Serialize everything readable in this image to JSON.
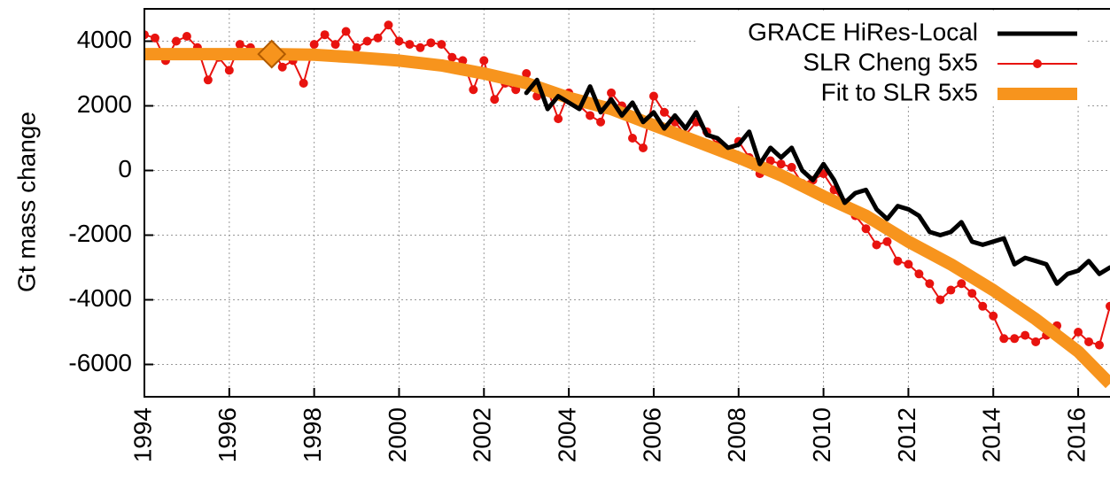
{
  "chart_data": {
    "type": "line",
    "y_label": "Gt mass change",
    "xlim": [
      1994,
      2016.75
    ],
    "ylim": [
      -7000,
      5000
    ],
    "xticks": [
      1994,
      1996,
      1998,
      2000,
      2002,
      2004,
      2006,
      2008,
      2010,
      2012,
      2014,
      2016
    ],
    "yticks": [
      -6000,
      -4000,
      -2000,
      0,
      2000,
      4000
    ],
    "grid": true,
    "legend": "top-right",
    "series": [
      {
        "name": "GRACE HiRes-Local",
        "color": "#000000",
        "style": "line",
        "x": [
          2003.0,
          2003.25,
          2003.5,
          2003.75,
          2004.0,
          2004.25,
          2004.5,
          2004.75,
          2005.0,
          2005.25,
          2005.5,
          2005.75,
          2006.0,
          2006.25,
          2006.5,
          2006.75,
          2007.0,
          2007.25,
          2007.5,
          2007.75,
          2008.0,
          2008.25,
          2008.5,
          2008.75,
          2009.0,
          2009.25,
          2009.5,
          2009.75,
          2010.0,
          2010.25,
          2010.5,
          2010.75,
          2011.0,
          2011.25,
          2011.5,
          2011.75,
          2012.0,
          2012.25,
          2012.5,
          2012.75,
          2013.0,
          2013.25,
          2013.5,
          2013.75,
          2014.0,
          2014.25,
          2014.5,
          2014.75,
          2015.0,
          2015.25,
          2015.5,
          2015.75,
          2016.0,
          2016.25,
          2016.5,
          2016.75
        ],
        "values": [
          2400,
          2800,
          1900,
          2300,
          2100,
          1900,
          2600,
          1800,
          2200,
          1700,
          2100,
          1500,
          1800,
          1300,
          1700,
          1300,
          1800,
          1100,
          1000,
          700,
          800,
          1200,
          200,
          700,
          400,
          700,
          0,
          -300,
          200,
          -300,
          -1000,
          -700,
          -600,
          -1200,
          -1500,
          -1100,
          -1200,
          -1400,
          -1900,
          -2000,
          -1900,
          -1600,
          -2200,
          -2300,
          -2200,
          -2100,
          -2900,
          -2700,
          -2800,
          -2900,
          -3500,
          -3200,
          -3100,
          -2800,
          -3200,
          -3000
        ]
      },
      {
        "name": "SLR Cheng 5x5",
        "color": "#e8130f",
        "style": "linespoints",
        "x": [
          1994.0,
          1994.25,
          1994.5,
          1994.75,
          1995.0,
          1995.25,
          1995.5,
          1995.75,
          1996.0,
          1996.25,
          1996.5,
          1996.75,
          1997.0,
          1997.25,
          1997.5,
          1997.75,
          1998.0,
          1998.25,
          1998.5,
          1998.75,
          1999.0,
          1999.25,
          1999.5,
          1999.75,
          2000.0,
          2000.25,
          2000.5,
          2000.75,
          2001.0,
          2001.25,
          2001.5,
          2001.75,
          2002.0,
          2002.25,
          2002.5,
          2002.75,
          2003.0,
          2003.25,
          2003.5,
          2003.75,
          2004.0,
          2004.25,
          2004.5,
          2004.75,
          2005.0,
          2005.25,
          2005.5,
          2005.75,
          2006.0,
          2006.25,
          2006.5,
          2006.75,
          2007.0,
          2007.25,
          2007.5,
          2007.75,
          2008.0,
          2008.25,
          2008.5,
          2008.75,
          2009.0,
          2009.25,
          2009.5,
          2009.75,
          2010.0,
          2010.25,
          2010.5,
          2010.75,
          2011.0,
          2011.25,
          2011.5,
          2011.75,
          2012.0,
          2012.25,
          2012.5,
          2012.75,
          2013.0,
          2013.25,
          2013.5,
          2013.75,
          2014.0,
          2014.25,
          2014.5,
          2014.75,
          2015.0,
          2015.25,
          2015.5,
          2015.75,
          2016.0,
          2016.25,
          2016.5,
          2016.75
        ],
        "values": [
          4200,
          4100,
          3400,
          4000,
          4150,
          3800,
          2800,
          3500,
          3100,
          3900,
          3800,
          3600,
          3800,
          3200,
          3400,
          2700,
          3900,
          4200,
          3900,
          4300,
          3800,
          4000,
          4100,
          4500,
          4000,
          3900,
          3800,
          3950,
          3900,
          3500,
          3400,
          2500,
          3400,
          2200,
          2700,
          2500,
          3000,
          2300,
          2500,
          1600,
          2400,
          2000,
          1700,
          1500,
          2400,
          2000,
          1000,
          700,
          2300,
          1800,
          1500,
          1100,
          1500,
          1200,
          800,
          500,
          900,
          400,
          -100,
          300,
          200,
          100,
          -400,
          -300,
          -100,
          -600,
          -1000,
          -1400,
          -1800,
          -2300,
          -2200,
          -2800,
          -2900,
          -3200,
          -3500,
          -4000,
          -3700,
          -3500,
          -3800,
          -4200,
          -4500,
          -5200,
          -5200,
          -5100,
          -5300,
          -5100,
          -4800,
          -5400,
          -5000,
          -5300,
          -5400,
          -4200
        ]
      },
      {
        "name": "Fit to SLR 5x5",
        "color": "#f7941d",
        "style": "thick",
        "x": [
          1994,
          1995,
          1996,
          1997,
          1998,
          1999,
          2000,
          2001,
          2002,
          2003,
          2004,
          2005,
          2006,
          2007,
          2008,
          2009,
          2010,
          2011,
          2012,
          2013,
          2014,
          2015,
          2016,
          2016.75
        ],
        "values": [
          3600,
          3600,
          3600,
          3600,
          3580,
          3500,
          3400,
          3250,
          3000,
          2700,
          2250,
          1900,
          1400,
          900,
          400,
          -150,
          -800,
          -1400,
          -2200,
          -2900,
          -3700,
          -4600,
          -5600,
          -6600
        ]
      }
    ],
    "markers": [
      {
        "x": 1997,
        "y": 3600,
        "color": "#f7941d"
      }
    ]
  }
}
